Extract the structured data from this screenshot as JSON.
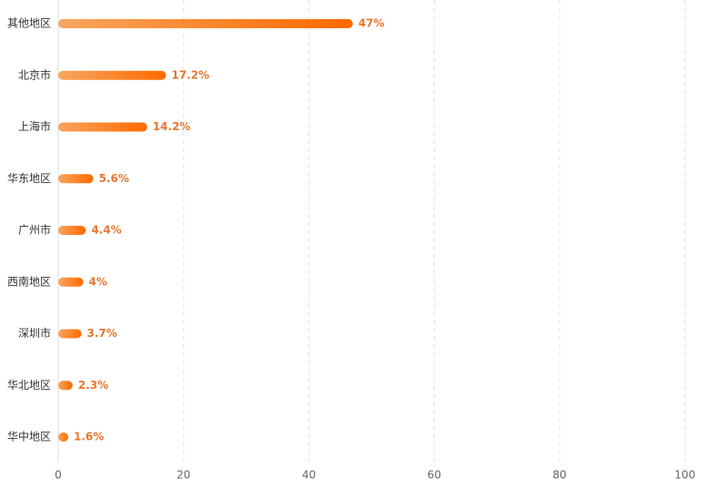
{
  "chart_data": {
    "type": "hbar",
    "categories": [
      "其他地区",
      "北京市",
      "上海市",
      "华东地区",
      "广州市",
      "西南地区",
      "深圳市",
      "华北地区",
      "华中地区"
    ],
    "values": [
      47,
      17.2,
      14.2,
      5.6,
      4.4,
      4,
      3.7,
      2.3,
      1.6
    ],
    "value_labels": [
      "47%",
      "17.2%",
      "14.2%",
      "5.6%",
      "4.4%",
      "4%",
      "3.7%",
      "2.3%",
      "1.6%"
    ],
    "gradient": [
      "#f8a55e",
      "#ff6a00"
    ],
    "label_color": "#e8772e",
    "xlim": [
      0,
      100
    ],
    "xticks": [
      0,
      20,
      40,
      60,
      80,
      100
    ],
    "grid": true
  }
}
